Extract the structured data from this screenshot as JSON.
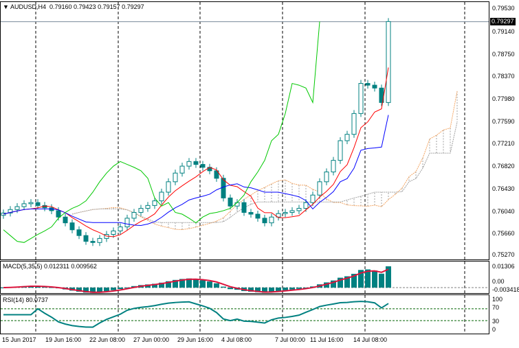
{
  "header": {
    "symbol": "AUDUSD,H4",
    "open": "0.79160",
    "high": "0.79423",
    "low": "0.79157",
    "close": "0.79297"
  },
  "price_axis": [
    "0.79530",
    "0.79140",
    "0.78750",
    "0.78370",
    "0.77980",
    "0.77590",
    "0.77210",
    "0.76820",
    "0.76430",
    "0.76040",
    "0.75660",
    "0.75270"
  ],
  "current_price": "0.79297",
  "macd": {
    "label": "MACD(5,35,5) 0.012311 0.009562",
    "axis_top": "0.01306",
    "axis_zero": "0.00",
    "axis_min": "-0.003418"
  },
  "rsi": {
    "label": "RSI(14) 80.0737",
    "axis": [
      "100",
      "70",
      "30",
      "0"
    ]
  },
  "time_axis": [
    "15 Jun 2017",
    "19 Jun 16:00",
    "22 Jun 08:00",
    "27 Jun 00:00",
    "29 Jun 16:00",
    "4 Jul 08:00",
    "7 Jul 00:00",
    "11 Jul 16:00",
    "14 Jul 08:00"
  ],
  "colors": {
    "bull": "#008080",
    "bear": "#008080",
    "tenkan": "#ff0000",
    "kijun": "#0000ff",
    "chikou": "#00c800",
    "spanA": "#f4a460",
    "cloud": "#a0a0a0",
    "macd_hist": "#008080",
    "macd_signal": "#dc143c",
    "rsi": "#008080"
  },
  "chart_data": {
    "type": "candlestick",
    "title": "AUDUSD,H4",
    "ylim": [
      0.7527,
      0.7953
    ],
    "closes": [
      0.7599,
      0.7605,
      0.761,
      0.7615,
      0.7617,
      0.7612,
      0.7608,
      0.7603,
      0.7592,
      0.7582,
      0.757,
      0.756,
      0.755,
      0.7548,
      0.7555,
      0.7562,
      0.7568,
      0.7575,
      0.759,
      0.76,
      0.7607,
      0.7612,
      0.762,
      0.7635,
      0.7653,
      0.7668,
      0.768,
      0.7688,
      0.7683,
      0.7678,
      0.7672,
      0.7659,
      0.7625,
      0.7611,
      0.7617,
      0.76,
      0.7597,
      0.759,
      0.7582,
      0.7592,
      0.7598,
      0.76,
      0.7603,
      0.7607,
      0.7617,
      0.763,
      0.7653,
      0.767,
      0.769,
      0.7724,
      0.7735,
      0.7771,
      0.7823,
      0.782,
      0.7815,
      0.779,
      0.793
    ]
  }
}
